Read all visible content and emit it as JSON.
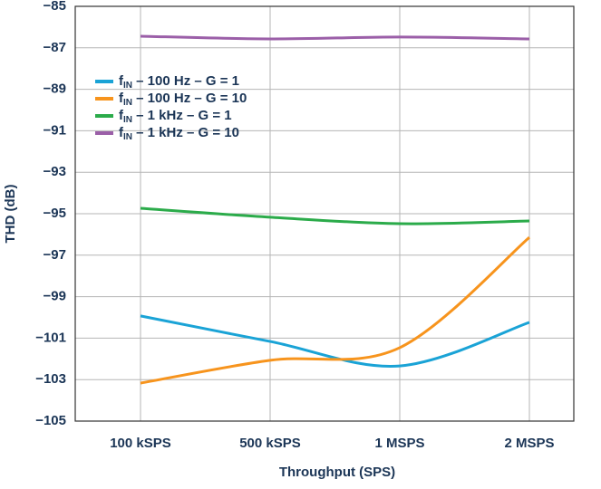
{
  "chart_data": {
    "type": "line",
    "xlabel": "Throughput (SPS)",
    "ylabel": "THD (dB)",
    "categories": [
      "100 kSPS",
      "500 kSPS",
      "1 MSPS",
      "2 MSPS"
    ],
    "series": [
      {
        "name": "fIN – 100 Hz – G = 1",
        "color": "#1aa3d6",
        "values": [
          -99.93,
          -101.16,
          -102.34,
          -100.24
        ]
      },
      {
        "name": "fIN – 100 Hz – G = 10",
        "color": "#f7941d",
        "values": [
          -103.17,
          -102.07,
          -101.46,
          -96.14
        ]
      },
      {
        "name": "fIN – 1 kHz – G = 1",
        "color": "#2bab4a",
        "values": [
          -94.74,
          -95.17,
          -95.48,
          -95.35
        ]
      },
      {
        "name": "fIN – 1 kHz – G = 10",
        "color": "#9b5fa8",
        "values": [
          -86.44,
          -86.57,
          -86.48,
          -86.57
        ]
      }
    ],
    "ylim": [
      -105,
      -85
    ],
    "yticks": [
      {
        "value": -85,
        "label": "−85"
      },
      {
        "value": -87,
        "label": "−87"
      },
      {
        "value": -89,
        "label": "−89"
      },
      {
        "value": -91,
        "label": "−91"
      },
      {
        "value": -93,
        "label": "−93"
      },
      {
        "value": -95,
        "label": "−95"
      },
      {
        "value": -97,
        "label": "−97"
      },
      {
        "value": -99,
        "label": "−99"
      },
      {
        "value": -101,
        "label": "−101"
      },
      {
        "value": -103,
        "label": "−103"
      },
      {
        "value": -105,
        "label": "−105"
      }
    ],
    "grid": true,
    "legend": "upper left"
  }
}
